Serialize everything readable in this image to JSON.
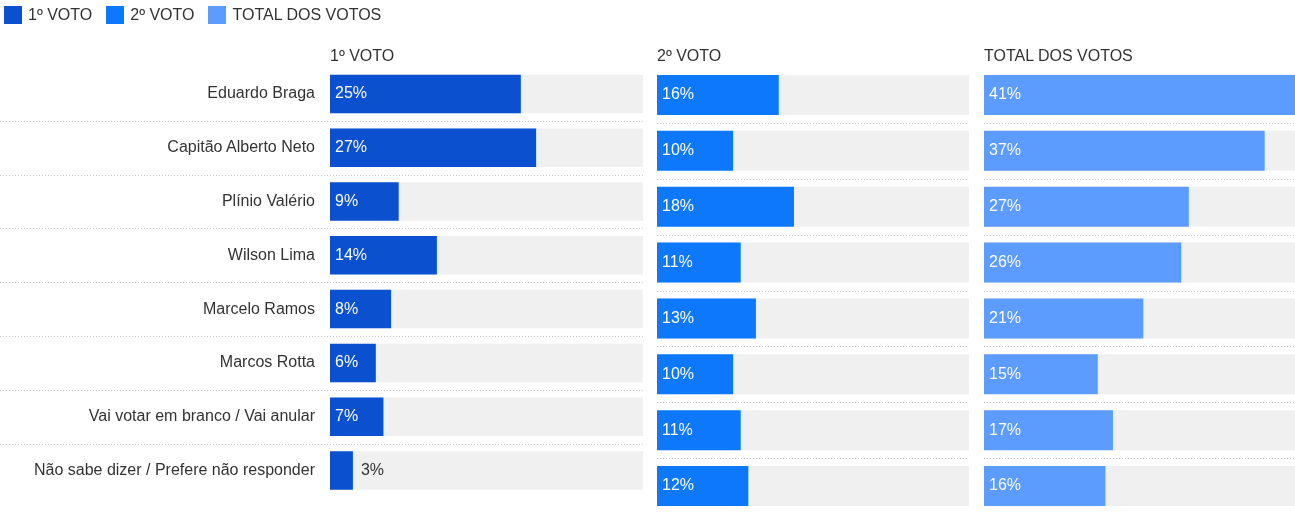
{
  "chart_data": [
    {
      "type": "bar",
      "orientation": "horizontal",
      "title": "1º VOTO",
      "categories": [
        "Eduardo Braga",
        "Capitão Alberto Neto",
        "Plínio Valério",
        "Wilson Lima",
        "Marcelo Ramos",
        "Marcos Rotta",
        "Vai votar em branco / Vai anular",
        "Não sabe dizer / Prefere não responder"
      ],
      "series": [
        {
          "name": "1º VOTO",
          "color": "#0b50cf",
          "values": [
            25,
            27,
            9,
            14,
            8,
            6,
            7,
            3
          ],
          "value_labels": [
            "25%",
            "27%",
            "9%",
            "14%",
            "8%",
            "6%",
            "7%",
            "3%"
          ]
        }
      ],
      "legend": "top left",
      "grid": "y"
    },
    {
      "type": "bar",
      "orientation": "horizontal",
      "title": "2º VOTO",
      "categories": [
        null,
        null,
        null,
        null,
        null,
        null,
        null,
        null
      ],
      "series": [
        {
          "name": "2º VOTO",
          "color": "#0d78fb",
          "values": [
            16,
            10,
            18,
            11,
            13,
            10,
            11,
            12
          ],
          "value_labels": [
            "16%",
            "10%",
            "18%",
            "11%",
            "13%",
            "10%",
            "11%",
            "12%"
          ]
        }
      ],
      "legend": "top left",
      "grid": "y"
    },
    {
      "type": "bar",
      "orientation": "horizontal",
      "title": "TOTAL DOS VOTOS",
      "categories": [
        null,
        null,
        null,
        null,
        null,
        null,
        null,
        null
      ],
      "series": [
        {
          "name": "TOTAL DOS VOTOS",
          "color": "#5c9bff",
          "values": [
            41,
            37,
            27,
            26,
            21,
            15,
            17,
            16
          ],
          "value_labels": [
            "41%",
            "37%",
            "27%",
            "26%",
            "21%",
            "15%",
            "17%",
            "16%"
          ]
        }
      ],
      "legend": "top left",
      "grid": "y"
    }
  ]
}
